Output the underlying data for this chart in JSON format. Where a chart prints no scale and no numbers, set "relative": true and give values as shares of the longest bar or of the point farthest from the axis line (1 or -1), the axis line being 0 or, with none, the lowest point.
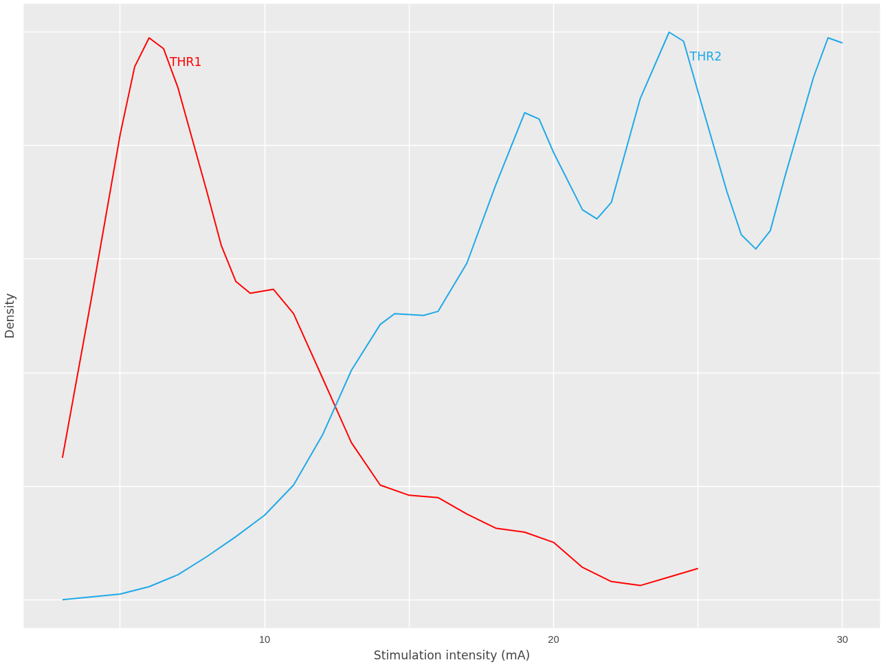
{
  "chart_data": {
    "type": "line",
    "xlabel": "Stimulation intensity (mA)",
    "ylabel": "Density",
    "relative": true,
    "xlim": [
      1.66,
      31.3
    ],
    "xticks": [
      {
        "value": 5,
        "label": null
      },
      10,
      {
        "value": 15,
        "label": null
      },
      20,
      {
        "value": 25,
        "label": null
      },
      30
    ],
    "grid": true,
    "marker": "none",
    "line_style": "solid",
    "series": [
      {
        "name": "THR1",
        "color": "#ff0000",
        "x": [
          3,
          4,
          5,
          5.5,
          6,
          6.5,
          7,
          8,
          8.5,
          9,
          9.5,
          10.3,
          11,
          12,
          13,
          14,
          15,
          16,
          17,
          18,
          19,
          20,
          21,
          22,
          23,
          24,
          25
        ],
        "values": [
          0.25,
          0.53,
          0.82,
          0.939,
          0.99,
          0.971,
          0.902,
          0.719,
          0.624,
          0.561,
          0.54,
          0.547,
          0.504,
          0.391,
          0.277,
          0.202,
          0.184,
          0.18,
          0.151,
          0.126,
          0.119,
          0.101,
          0.057,
          0.032,
          0.025,
          0.04,
          0.055
        ]
      },
      {
        "name": "THR2",
        "color": "#1ea8e8",
        "x": [
          3,
          5,
          6,
          7,
          8,
          9,
          10,
          11,
          12,
          13,
          14,
          14.5,
          15.5,
          16,
          17,
          18,
          19,
          19.5,
          20,
          21,
          21.5,
          22,
          23,
          24,
          24.5,
          25,
          26,
          26.5,
          27,
          27.5,
          28,
          29,
          29.5,
          30
        ],
        "values": [
          0,
          0.01,
          0.023,
          0.044,
          0.076,
          0.111,
          0.149,
          0.202,
          0.29,
          0.404,
          0.485,
          0.504,
          0.501,
          0.508,
          0.593,
          0.731,
          0.858,
          0.847,
          0.788,
          0.687,
          0.671,
          0.7,
          0.883,
          1,
          0.984,
          0.895,
          0.719,
          0.643,
          0.618,
          0.65,
          0.744,
          0.921,
          0.99,
          0.981
        ]
      }
    ]
  }
}
